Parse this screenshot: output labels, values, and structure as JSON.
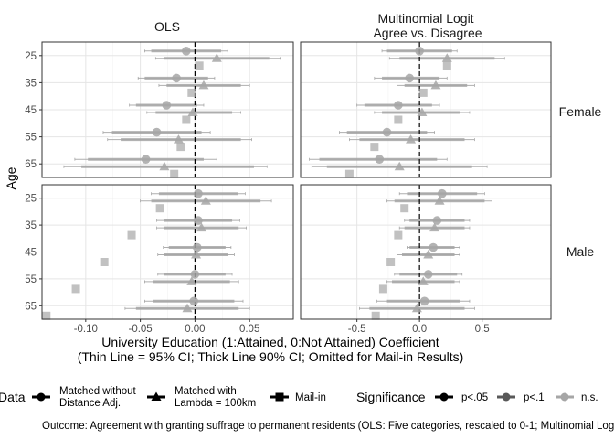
{
  "figure": {
    "facet_columns": [
      "OLS",
      "Multinomial Logit\nAgree vs. Disagree"
    ],
    "facet_rows": [
      "Female",
      "Male"
    ],
    "ylabel": "Age",
    "xlabel_lines": [
      "University Education (1:Attained, 0:Not Attained) Coefficient",
      "(Thin Line = 95% CI; Thick Line 90% CI; Omitted for Mail-in Results)"
    ],
    "legend_data_title": "Data",
    "legend_data_items": [
      {
        "shape": "circle",
        "lines": [
          "Matched without",
          "Distance Adj."
        ]
      },
      {
        "shape": "triangle",
        "lines": [
          "Matched with",
          "Lambda = 100km"
        ]
      },
      {
        "shape": "square",
        "lines": [
          "Mail-in"
        ]
      }
    ],
    "legend_sig_title": "Significance",
    "legend_sig_items": [
      {
        "label": "p<.05",
        "color": "#000000"
      },
      {
        "label": "p<.1",
        "color": "#595959"
      },
      {
        "label": "n.s.",
        "color": "#a6a6a6"
      }
    ],
    "caption": "Outcome: Agreement with granting suffrage to permanent residents (OLS: Five categories, rescaled to 0-1; Multinomial Logit: Three categories)."
  },
  "chart_data": {
    "type": "scatter",
    "subtype": "coefficient-plot",
    "y_categories": [
      "25",
      "35",
      "45",
      "55",
      "65"
    ],
    "columns": [
      {
        "key": "OLS",
        "xlim": [
          -0.14,
          0.09
        ],
        "xticks": [
          -0.1,
          -0.05,
          0.0,
          0.05
        ],
        "xtick_labels": [
          "-0.10",
          "-0.05",
          "0.00",
          "0.05"
        ]
      },
      {
        "key": "Multinomial Logit",
        "xlim": [
          -0.95,
          1.05
        ],
        "xticks": [
          -0.5,
          0.0,
          0.5
        ],
        "xtick_labels": [
          "-0.5",
          "0.0",
          "0.5"
        ]
      }
    ],
    "reference_line_x": 0,
    "grid": true,
    "panels": [
      {
        "col": 0,
        "row": 0,
        "points": [
          {
            "age": "25",
            "method": "circle",
            "est": -0.008,
            "lo90": -0.04,
            "hi90": 0.024,
            "lo95": -0.046,
            "hi95": 0.03,
            "sig": "n.s."
          },
          {
            "age": "25",
            "method": "triangle",
            "est": 0.02,
            "lo90": -0.028,
            "hi90": 0.068,
            "lo95": -0.036,
            "hi95": 0.078,
            "sig": "n.s."
          },
          {
            "age": "25",
            "method": "square",
            "est": 0.004,
            "sig": "n.s."
          },
          {
            "age": "35",
            "method": "circle",
            "est": -0.017,
            "lo90": -0.046,
            "hi90": 0.012,
            "lo95": -0.052,
            "hi95": 0.018,
            "sig": "n.s."
          },
          {
            "age": "35",
            "method": "triangle",
            "est": 0.008,
            "lo90": -0.026,
            "hi90": 0.042,
            "lo95": -0.033,
            "hi95": 0.05,
            "sig": "n.s."
          },
          {
            "age": "35",
            "method": "square",
            "est": -0.003,
            "sig": "n.s."
          },
          {
            "age": "45",
            "method": "circle",
            "est": -0.026,
            "lo90": -0.054,
            "hi90": 0.002,
            "lo95": -0.06,
            "hi95": 0.008,
            "sig": "n.s."
          },
          {
            "age": "45",
            "method": "triangle",
            "est": -0.002,
            "lo90": -0.036,
            "hi90": 0.034,
            "lo95": -0.044,
            "hi95": 0.042,
            "sig": "n.s."
          },
          {
            "age": "45",
            "method": "square",
            "est": -0.008,
            "sig": "n.s."
          },
          {
            "age": "55",
            "method": "circle",
            "est": -0.035,
            "lo90": -0.076,
            "hi90": 0.006,
            "lo95": -0.084,
            "hi95": 0.014,
            "sig": "n.s."
          },
          {
            "age": "55",
            "method": "triangle",
            "est": -0.015,
            "lo90": -0.068,
            "hi90": 0.042,
            "lo95": -0.08,
            "hi95": 0.052,
            "sig": "n.s."
          },
          {
            "age": "55",
            "method": "square",
            "est": -0.013,
            "sig": "n.s."
          },
          {
            "age": "65",
            "method": "circle",
            "est": -0.045,
            "lo90": -0.098,
            "hi90": 0.008,
            "lo95": -0.11,
            "hi95": 0.02,
            "sig": "n.s."
          },
          {
            "age": "65",
            "method": "triangle",
            "est": -0.028,
            "lo90": -0.104,
            "hi90": 0.054,
            "lo95": -0.12,
            "hi95": 0.066,
            "sig": "n.s."
          },
          {
            "age": "65",
            "method": "square",
            "est": -0.019,
            "sig": "n.s."
          }
        ]
      },
      {
        "col": 1,
        "row": 0,
        "points": [
          {
            "age": "25",
            "method": "circle",
            "est": 0.0,
            "lo90": -0.26,
            "hi90": 0.26,
            "lo95": -0.3,
            "hi95": 0.3,
            "sig": "n.s."
          },
          {
            "age": "25",
            "method": "triangle",
            "est": 0.22,
            "lo90": -0.16,
            "hi90": 0.6,
            "lo95": -0.24,
            "hi95": 0.68,
            "sig": "n.s."
          },
          {
            "age": "25",
            "method": "square",
            "est": 0.22,
            "sig": "n.s."
          },
          {
            "age": "35",
            "method": "circle",
            "est": -0.08,
            "lo90": -0.3,
            "hi90": 0.16,
            "lo95": -0.36,
            "hi95": 0.22,
            "sig": "n.s."
          },
          {
            "age": "35",
            "method": "triangle",
            "est": 0.13,
            "lo90": -0.12,
            "hi90": 0.38,
            "lo95": -0.18,
            "hi95": 0.44,
            "sig": "n.s."
          },
          {
            "age": "35",
            "method": "square",
            "est": 0.03,
            "sig": "n.s."
          },
          {
            "age": "45",
            "method": "circle",
            "est": -0.17,
            "lo90": -0.44,
            "hi90": 0.1,
            "lo95": -0.5,
            "hi95": 0.16,
            "sig": "n.s."
          },
          {
            "age": "45",
            "method": "triangle",
            "est": 0.02,
            "lo90": -0.3,
            "hi90": 0.32,
            "lo95": -0.36,
            "hi95": 0.4,
            "sig": "n.s."
          },
          {
            "age": "45",
            "method": "square",
            "est": -0.17,
            "sig": "n.s."
          },
          {
            "age": "55",
            "method": "circle",
            "est": -0.26,
            "lo90": -0.58,
            "hi90": 0.06,
            "lo95": -0.64,
            "hi95": 0.12,
            "sig": "n.s."
          },
          {
            "age": "55",
            "method": "triangle",
            "est": -0.07,
            "lo90": -0.48,
            "hi90": 0.36,
            "lo95": -0.56,
            "hi95": 0.44,
            "sig": "n.s."
          },
          {
            "age": "55",
            "method": "square",
            "est": -0.36,
            "sig": "n.s."
          },
          {
            "age": "65",
            "method": "circle",
            "est": -0.32,
            "lo90": -0.8,
            "hi90": 0.14,
            "lo95": -0.88,
            "hi95": 0.22,
            "sig": "n.s."
          },
          {
            "age": "65",
            "method": "triangle",
            "est": -0.16,
            "lo90": -0.74,
            "hi90": 0.42,
            "lo95": -0.86,
            "hi95": 0.54,
            "sig": "n.s."
          },
          {
            "age": "65",
            "method": "square",
            "est": -0.56,
            "sig": "n.s."
          }
        ]
      },
      {
        "col": 0,
        "row": 1,
        "points": [
          {
            "age": "25",
            "method": "circle",
            "est": 0.003,
            "lo90": -0.033,
            "hi90": 0.039,
            "lo95": -0.04,
            "hi95": 0.046,
            "sig": "n.s."
          },
          {
            "age": "25",
            "method": "triangle",
            "est": 0.01,
            "lo90": -0.04,
            "hi90": 0.06,
            "lo95": -0.05,
            "hi95": 0.07,
            "sig": "n.s."
          },
          {
            "age": "25",
            "method": "square",
            "est": -0.032,
            "sig": "n.s."
          },
          {
            "age": "35",
            "method": "circle",
            "est": 0.003,
            "lo90": -0.028,
            "hi90": 0.034,
            "lo95": -0.035,
            "hi95": 0.041,
            "sig": "n.s."
          },
          {
            "age": "35",
            "method": "triangle",
            "est": 0.006,
            "lo90": -0.028,
            "hi90": 0.04,
            "lo95": -0.035,
            "hi95": 0.047,
            "sig": "n.s."
          },
          {
            "age": "35",
            "method": "square",
            "est": -0.058,
            "sig": "n.s."
          },
          {
            "age": "45",
            "method": "circle",
            "est": 0.002,
            "lo90": -0.024,
            "hi90": 0.028,
            "lo95": -0.029,
            "hi95": 0.033,
            "sig": "n.s."
          },
          {
            "age": "45",
            "method": "triangle",
            "est": 0.001,
            "lo90": -0.028,
            "hi90": 0.03,
            "lo95": -0.034,
            "hi95": 0.036,
            "sig": "n.s."
          },
          {
            "age": "45",
            "method": "square",
            "est": -0.083,
            "sig": "n.s."
          },
          {
            "age": "55",
            "method": "circle",
            "est": 0.0,
            "lo90": -0.028,
            "hi90": 0.028,
            "lo95": -0.034,
            "hi95": 0.034,
            "sig": "n.s."
          },
          {
            "age": "55",
            "method": "triangle",
            "est": -0.003,
            "lo90": -0.038,
            "hi90": 0.032,
            "lo95": -0.046,
            "hi95": 0.04,
            "sig": "n.s."
          },
          {
            "age": "55",
            "method": "square",
            "est": -0.109,
            "sig": "n.s."
          },
          {
            "age": "65",
            "method": "circle",
            "est": -0.001,
            "lo90": -0.038,
            "hi90": 0.036,
            "lo95": -0.046,
            "hi95": 0.044,
            "sig": "n.s."
          },
          {
            "age": "65",
            "method": "triangle",
            "est": -0.007,
            "lo90": -0.054,
            "hi90": 0.04,
            "lo95": -0.064,
            "hi95": 0.05,
            "sig": "n.s."
          },
          {
            "age": "65",
            "method": "square",
            "est": -0.136,
            "sig": "n.s."
          }
        ]
      },
      {
        "col": 1,
        "row": 1,
        "points": [
          {
            "age": "25",
            "method": "circle",
            "est": 0.18,
            "lo90": -0.1,
            "hi90": 0.46,
            "lo95": -0.16,
            "hi95": 0.52,
            "sig": "n.s."
          },
          {
            "age": "25",
            "method": "triangle",
            "est": 0.16,
            "lo90": -0.2,
            "hi90": 0.52,
            "lo95": -0.26,
            "hi95": 0.58,
            "sig": "n.s."
          },
          {
            "age": "25",
            "method": "square",
            "est": -0.12,
            "sig": "n.s."
          },
          {
            "age": "35",
            "method": "circle",
            "est": 0.14,
            "lo90": -0.08,
            "hi90": 0.36,
            "lo95": -0.12,
            "hi95": 0.4,
            "sig": "n.s."
          },
          {
            "age": "35",
            "method": "triangle",
            "est": 0.12,
            "lo90": -0.12,
            "hi90": 0.36,
            "lo95": -0.16,
            "hi95": 0.4,
            "sig": "n.s."
          },
          {
            "age": "35",
            "method": "square",
            "est": -0.17,
            "sig": "n.s."
          },
          {
            "age": "45",
            "method": "circle",
            "est": 0.11,
            "lo90": -0.08,
            "hi90": 0.28,
            "lo95": -0.1,
            "hi95": 0.32,
            "sig": "n.s."
          },
          {
            "age": "45",
            "method": "triangle",
            "est": 0.07,
            "lo90": -0.14,
            "hi90": 0.28,
            "lo95": -0.18,
            "hi95": 0.32,
            "sig": "n.s."
          },
          {
            "age": "45",
            "method": "square",
            "est": -0.23,
            "sig": "n.s."
          },
          {
            "age": "55",
            "method": "circle",
            "est": 0.07,
            "lo90": -0.16,
            "hi90": 0.3,
            "lo95": -0.2,
            "hi95": 0.34,
            "sig": "n.s."
          },
          {
            "age": "55",
            "method": "triangle",
            "est": 0.03,
            "lo90": -0.22,
            "hi90": 0.28,
            "lo95": -0.26,
            "hi95": 0.32,
            "sig": "n.s."
          },
          {
            "age": "55",
            "method": "square",
            "est": -0.29,
            "sig": "n.s."
          },
          {
            "age": "65",
            "method": "circle",
            "est": 0.04,
            "lo90": -0.26,
            "hi90": 0.32,
            "lo95": -0.34,
            "hi95": 0.4,
            "sig": "n.s."
          },
          {
            "age": "65",
            "method": "triangle",
            "est": -0.02,
            "lo90": -0.4,
            "hi90": 0.36,
            "lo95": -0.48,
            "hi95": 0.44,
            "sig": "n.s."
          },
          {
            "age": "65",
            "method": "square",
            "est": -0.35,
            "sig": "n.s."
          }
        ]
      }
    ]
  }
}
